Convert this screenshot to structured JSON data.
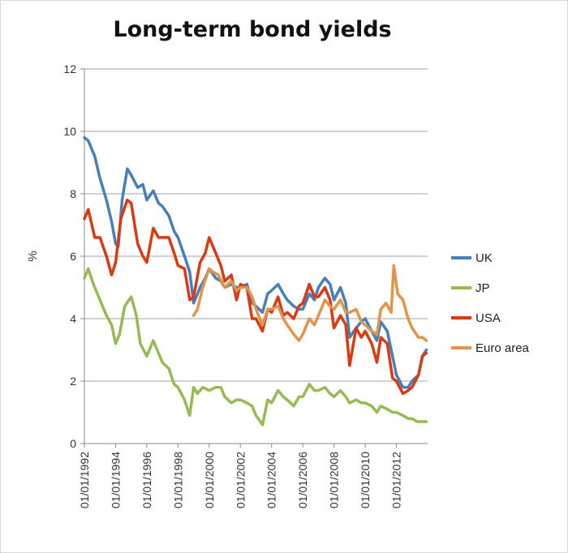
{
  "chart_data": {
    "type": "line",
    "title": "Long-term bond yields",
    "xlabel": "",
    "ylabel": "%",
    "ylim": [
      0,
      12
    ],
    "yticks": [
      0,
      2,
      4,
      6,
      8,
      10,
      12
    ],
    "xlim": [
      "1992-01-01",
      "2014-01-01"
    ],
    "xticks": [
      "01/01/1992",
      "01/01/1994",
      "01/01/1996",
      "01/01/1998",
      "01/01/2000",
      "01/01/2002",
      "01/01/2004",
      "01/01/2006",
      "01/01/2008",
      "01/01/2010",
      "01/01/2012"
    ],
    "grid": "horizontal",
    "legend_position": "right",
    "series": [
      {
        "name": "UK",
        "color": "#4a7ebb",
        "x": [
          "1992-01",
          "1992-04",
          "1992-09",
          "1993-01",
          "1993-06",
          "1993-10",
          "1994-01",
          "1994-03",
          "1994-06",
          "1994-10",
          "1995-01",
          "1995-06",
          "1995-10",
          "1996-01",
          "1996-06",
          "1996-10",
          "1997-01",
          "1997-06",
          "1997-10",
          "1998-01",
          "1998-06",
          "1998-10",
          "1999-01",
          "1999-06",
          "1999-10",
          "2000-01",
          "2000-06",
          "2000-10",
          "2001-01",
          "2001-06",
          "2001-10",
          "2002-01",
          "2002-06",
          "2002-10",
          "2003-01",
          "2003-06",
          "2003-10",
          "2004-01",
          "2004-06",
          "2004-10",
          "2005-01",
          "2005-06",
          "2005-10",
          "2006-01",
          "2006-06",
          "2006-10",
          "2007-01",
          "2007-06",
          "2007-10",
          "2008-01",
          "2008-06",
          "2008-10",
          "2009-01",
          "2009-06",
          "2009-10",
          "2010-01",
          "2010-06",
          "2010-10",
          "2011-01",
          "2011-06",
          "2011-10",
          "2012-01",
          "2012-06",
          "2012-10",
          "2013-01",
          "2013-06",
          "2013-09",
          "2013-12"
        ],
        "values": [
          9.8,
          9.7,
          9.2,
          8.5,
          7.8,
          7.1,
          6.4,
          6.3,
          7.8,
          8.8,
          8.6,
          8.2,
          8.3,
          7.8,
          8.1,
          7.7,
          7.6,
          7.3,
          6.8,
          6.6,
          6.0,
          5.5,
          4.5,
          5.0,
          5.3,
          5.6,
          5.3,
          5.2,
          5.0,
          5.1,
          5.0,
          5.0,
          5.1,
          4.5,
          4.4,
          4.2,
          4.8,
          4.9,
          5.1,
          4.8,
          4.6,
          4.4,
          4.3,
          4.3,
          4.8,
          4.6,
          5.0,
          5.3,
          5.1,
          4.6,
          5.0,
          4.5,
          3.4,
          3.7,
          3.9,
          4.0,
          3.6,
          3.3,
          3.9,
          3.6,
          2.8,
          2.2,
          1.8,
          1.8,
          2.0,
          2.2,
          2.8,
          3.0
        ]
      },
      {
        "name": "JP",
        "color": "#98b954",
        "x": [
          "1992-01",
          "1992-04",
          "1992-08",
          "1993-01",
          "1993-06",
          "1993-10",
          "1994-01",
          "1994-04",
          "1994-08",
          "1995-01",
          "1995-05",
          "1995-08",
          "1996-01",
          "1996-06",
          "1996-10",
          "1997-01",
          "1997-06",
          "1997-10",
          "1998-01",
          "1998-06",
          "1998-10",
          "1999-01",
          "1999-04",
          "1999-08",
          "2000-01",
          "2000-06",
          "2000-10",
          "2001-01",
          "2001-06",
          "2001-10",
          "2002-01",
          "2002-06",
          "2002-10",
          "2003-01",
          "2003-06",
          "2003-10",
          "2004-01",
          "2004-06",
          "2004-10",
          "2005-01",
          "2005-06",
          "2005-10",
          "2006-01",
          "2006-06",
          "2006-10",
          "2007-01",
          "2007-06",
          "2007-10",
          "2008-01",
          "2008-06",
          "2008-10",
          "2009-01",
          "2009-06",
          "2009-10",
          "2010-01",
          "2010-06",
          "2010-10",
          "2011-01",
          "2011-06",
          "2011-10",
          "2012-01",
          "2012-06",
          "2012-10",
          "2013-01",
          "2013-05",
          "2013-09",
          "2013-12"
        ],
        "values": [
          5.3,
          5.6,
          5.1,
          4.6,
          4.1,
          3.8,
          3.2,
          3.5,
          4.4,
          4.7,
          4.1,
          3.2,
          2.8,
          3.3,
          2.9,
          2.6,
          2.4,
          1.9,
          1.8,
          1.4,
          0.9,
          1.8,
          1.6,
          1.8,
          1.7,
          1.8,
          1.8,
          1.5,
          1.3,
          1.4,
          1.4,
          1.3,
          1.2,
          0.9,
          0.6,
          1.4,
          1.3,
          1.7,
          1.5,
          1.4,
          1.2,
          1.5,
          1.5,
          1.9,
          1.7,
          1.7,
          1.8,
          1.6,
          1.5,
          1.7,
          1.5,
          1.3,
          1.4,
          1.3,
          1.3,
          1.2,
          1.0,
          1.2,
          1.1,
          1.0,
          1.0,
          0.9,
          0.8,
          0.8,
          0.7,
          0.7,
          0.7
        ]
      },
      {
        "name": "USA",
        "color": "#d93a12",
        "x": [
          "1992-01",
          "1992-04",
          "1992-09",
          "1993-01",
          "1993-06",
          "1993-10",
          "1994-01",
          "1994-05",
          "1994-10",
          "1995-01",
          "1995-06",
          "1995-10",
          "1996-01",
          "1996-06",
          "1996-10",
          "1997-01",
          "1997-06",
          "1997-10",
          "1998-01",
          "1998-06",
          "1998-10",
          "1999-01",
          "1999-06",
          "1999-10",
          "2000-01",
          "2000-06",
          "2000-10",
          "2001-01",
          "2001-06",
          "2001-10",
          "2002-01",
          "2002-06",
          "2002-10",
          "2003-01",
          "2003-06",
          "2003-10",
          "2004-01",
          "2004-06",
          "2004-10",
          "2005-01",
          "2005-06",
          "2005-10",
          "2006-01",
          "2006-06",
          "2006-10",
          "2007-01",
          "2007-06",
          "2007-10",
          "2008-01",
          "2008-06",
          "2008-10",
          "2009-01",
          "2009-06",
          "2009-10",
          "2010-01",
          "2010-06",
          "2010-10",
          "2011-01",
          "2011-06",
          "2011-10",
          "2012-01",
          "2012-06",
          "2012-10",
          "2013-01",
          "2013-06",
          "2013-09",
          "2013-12"
        ],
        "values": [
          7.2,
          7.5,
          6.6,
          6.6,
          6.0,
          5.4,
          5.8,
          7.2,
          7.8,
          7.7,
          6.4,
          6.0,
          5.8,
          6.9,
          6.6,
          6.6,
          6.6,
          6.1,
          5.7,
          5.6,
          4.6,
          4.7,
          5.8,
          6.1,
          6.6,
          6.1,
          5.7,
          5.2,
          5.4,
          4.6,
          5.1,
          5.0,
          4.0,
          4.0,
          3.6,
          4.3,
          4.2,
          4.7,
          4.1,
          4.2,
          4.0,
          4.4,
          4.5,
          5.1,
          4.7,
          4.7,
          5.0,
          4.6,
          3.7,
          4.1,
          3.8,
          2.5,
          3.7,
          3.4,
          3.6,
          3.2,
          2.6,
          3.4,
          3.2,
          2.1,
          2.0,
          1.6,
          1.7,
          1.8,
          2.2,
          2.8,
          2.9
        ]
      },
      {
        "name": "Euro area",
        "color": "#e0954a",
        "x": [
          "1999-01",
          "1999-04",
          "1999-08",
          "2000-01",
          "2000-04",
          "2000-08",
          "2001-01",
          "2001-06",
          "2001-10",
          "2002-01",
          "2002-06",
          "2002-10",
          "2003-01",
          "2003-06",
          "2003-10",
          "2004-01",
          "2004-06",
          "2004-10",
          "2005-01",
          "2005-06",
          "2005-10",
          "2006-01",
          "2006-06",
          "2006-10",
          "2007-01",
          "2007-06",
          "2007-10",
          "2008-01",
          "2008-06",
          "2008-10",
          "2009-01",
          "2009-06",
          "2009-10",
          "2010-01",
          "2010-06",
          "2010-10",
          "2011-01",
          "2011-05",
          "2011-09",
          "2011-11",
          "2012-02",
          "2012-06",
          "2012-10",
          "2013-01",
          "2013-06",
          "2013-09",
          "2013-12"
        ],
        "values": [
          4.1,
          4.3,
          5.0,
          5.6,
          5.5,
          5.4,
          5.0,
          5.2,
          4.9,
          5.0,
          5.0,
          4.7,
          4.3,
          3.8,
          4.3,
          4.3,
          4.4,
          4.0,
          3.8,
          3.5,
          3.3,
          3.5,
          4.0,
          3.8,
          4.1,
          4.6,
          4.4,
          4.3,
          4.6,
          4.2,
          4.2,
          4.3,
          3.9,
          3.8,
          3.6,
          3.5,
          4.3,
          4.5,
          4.2,
          5.7,
          4.8,
          4.6,
          4.0,
          3.7,
          3.4,
          3.4,
          3.3
        ]
      }
    ]
  }
}
